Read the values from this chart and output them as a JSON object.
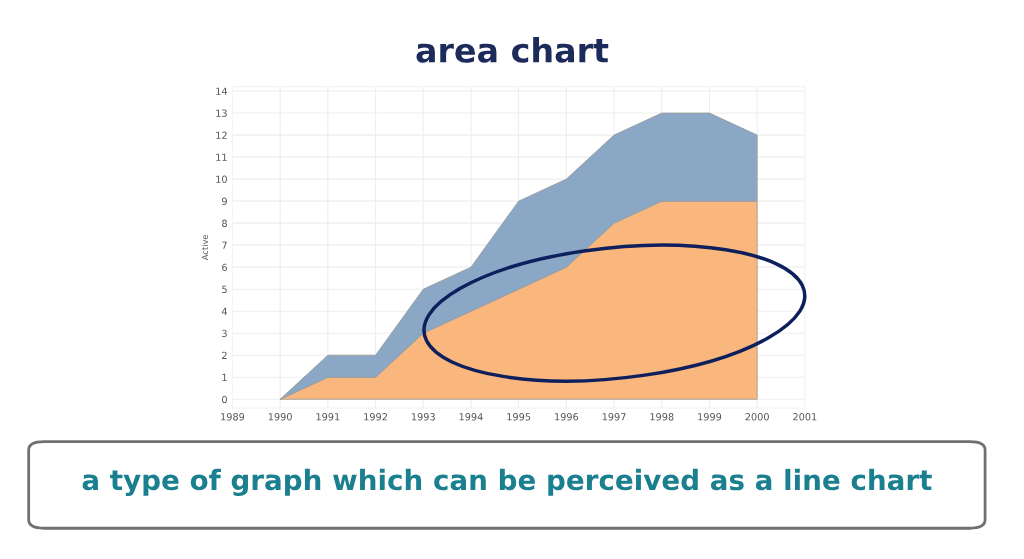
{
  "chart_data": {
    "type": "area",
    "title": "area chart",
    "ylabel": "Active",
    "x": [
      1990,
      1991,
      1992,
      1993,
      1994,
      1995,
      1996,
      1997,
      1998,
      1999,
      2000
    ],
    "stacked": true,
    "series": [
      {
        "color": "#f9b77d",
        "values": [
          0,
          1,
          1,
          3,
          4,
          5,
          6,
          8,
          9,
          9,
          9
        ]
      },
      {
        "color": "#8aa8c6",
        "values": [
          0,
          1,
          1,
          2,
          2,
          4,
          4,
          4,
          4,
          4,
          3
        ]
      }
    ],
    "xlim": [
      1989,
      2001
    ],
    "xticks": [
      1989,
      1990,
      1991,
      1992,
      1993,
      1994,
      1995,
      1996,
      1997,
      1998,
      1999,
      2000,
      2001
    ],
    "ylim": [
      -0.4,
      14.2
    ],
    "yticks": [
      0,
      1,
      2,
      3,
      4,
      5,
      6,
      7,
      8,
      9,
      10,
      11,
      12,
      13,
      14
    ],
    "grid": true,
    "legend": false,
    "annotations": [
      "a type of graph which can be perceived as a line chart"
    ]
  }
}
